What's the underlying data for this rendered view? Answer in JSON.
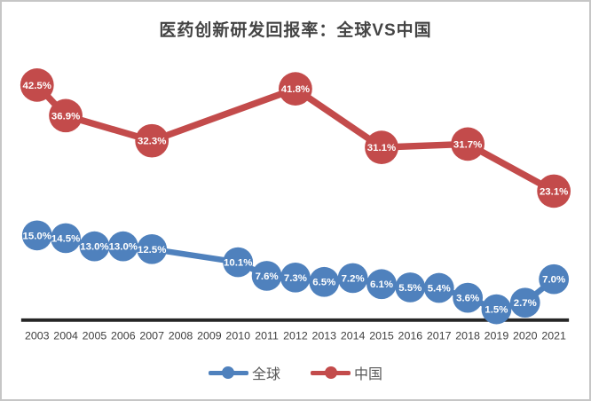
{
  "chart_data": {
    "type": "line",
    "title": "医药创新研发回报率：全球VS中国",
    "xlabel": "",
    "ylabel": "",
    "categories": [
      "2003",
      "2004",
      "2005",
      "2006",
      "2007",
      "2008",
      "2009",
      "2010",
      "2011",
      "2012",
      "2013",
      "2014",
      "2015",
      "2016",
      "2017",
      "2018",
      "2019",
      "2020",
      "2021"
    ],
    "series": [
      {
        "name": "全球",
        "color": "#4F81BD",
        "values": [
          15.0,
          14.5,
          13.0,
          13.0,
          12.5,
          null,
          null,
          10.1,
          7.6,
          7.3,
          6.5,
          7.2,
          6.1,
          5.5,
          5.4,
          3.6,
          1.5,
          2.7,
          7.0
        ],
        "labels": [
          "15.0%",
          "14.5%",
          "13.0%",
          "13.0%",
          "12.5%",
          null,
          null,
          "10.1%",
          "7.6%",
          "7.3%",
          "6.5%",
          "7.2%",
          "6.1%",
          "5.5%",
          "5.4%",
          "3.6%",
          "1.5%",
          "2.7%",
          "7.0%"
        ]
      },
      {
        "name": "中国",
        "color": "#C34B4B",
        "values": [
          42.5,
          36.9,
          null,
          null,
          32.3,
          null,
          null,
          null,
          null,
          41.8,
          null,
          null,
          31.1,
          null,
          null,
          31.7,
          null,
          null,
          23.1
        ],
        "labels": [
          "42.5%",
          "36.9%",
          null,
          null,
          "32.3%",
          null,
          null,
          null,
          null,
          "41.8%",
          null,
          null,
          "31.1%",
          null,
          null,
          "31.7%",
          null,
          null,
          "23.1%"
        ]
      }
    ],
    "ylim": [
      0,
      47
    ],
    "grid": false,
    "y_axis_shown": false,
    "legend_position": "bottom",
    "colors": {
      "axis_line": "#262626",
      "tick_label": "#404040",
      "title_text": "#444444",
      "legend_text": "#595959",
      "data_label": "#ffffff",
      "frame_border": "#c6c6c6",
      "background": "#ffffff"
    }
  }
}
